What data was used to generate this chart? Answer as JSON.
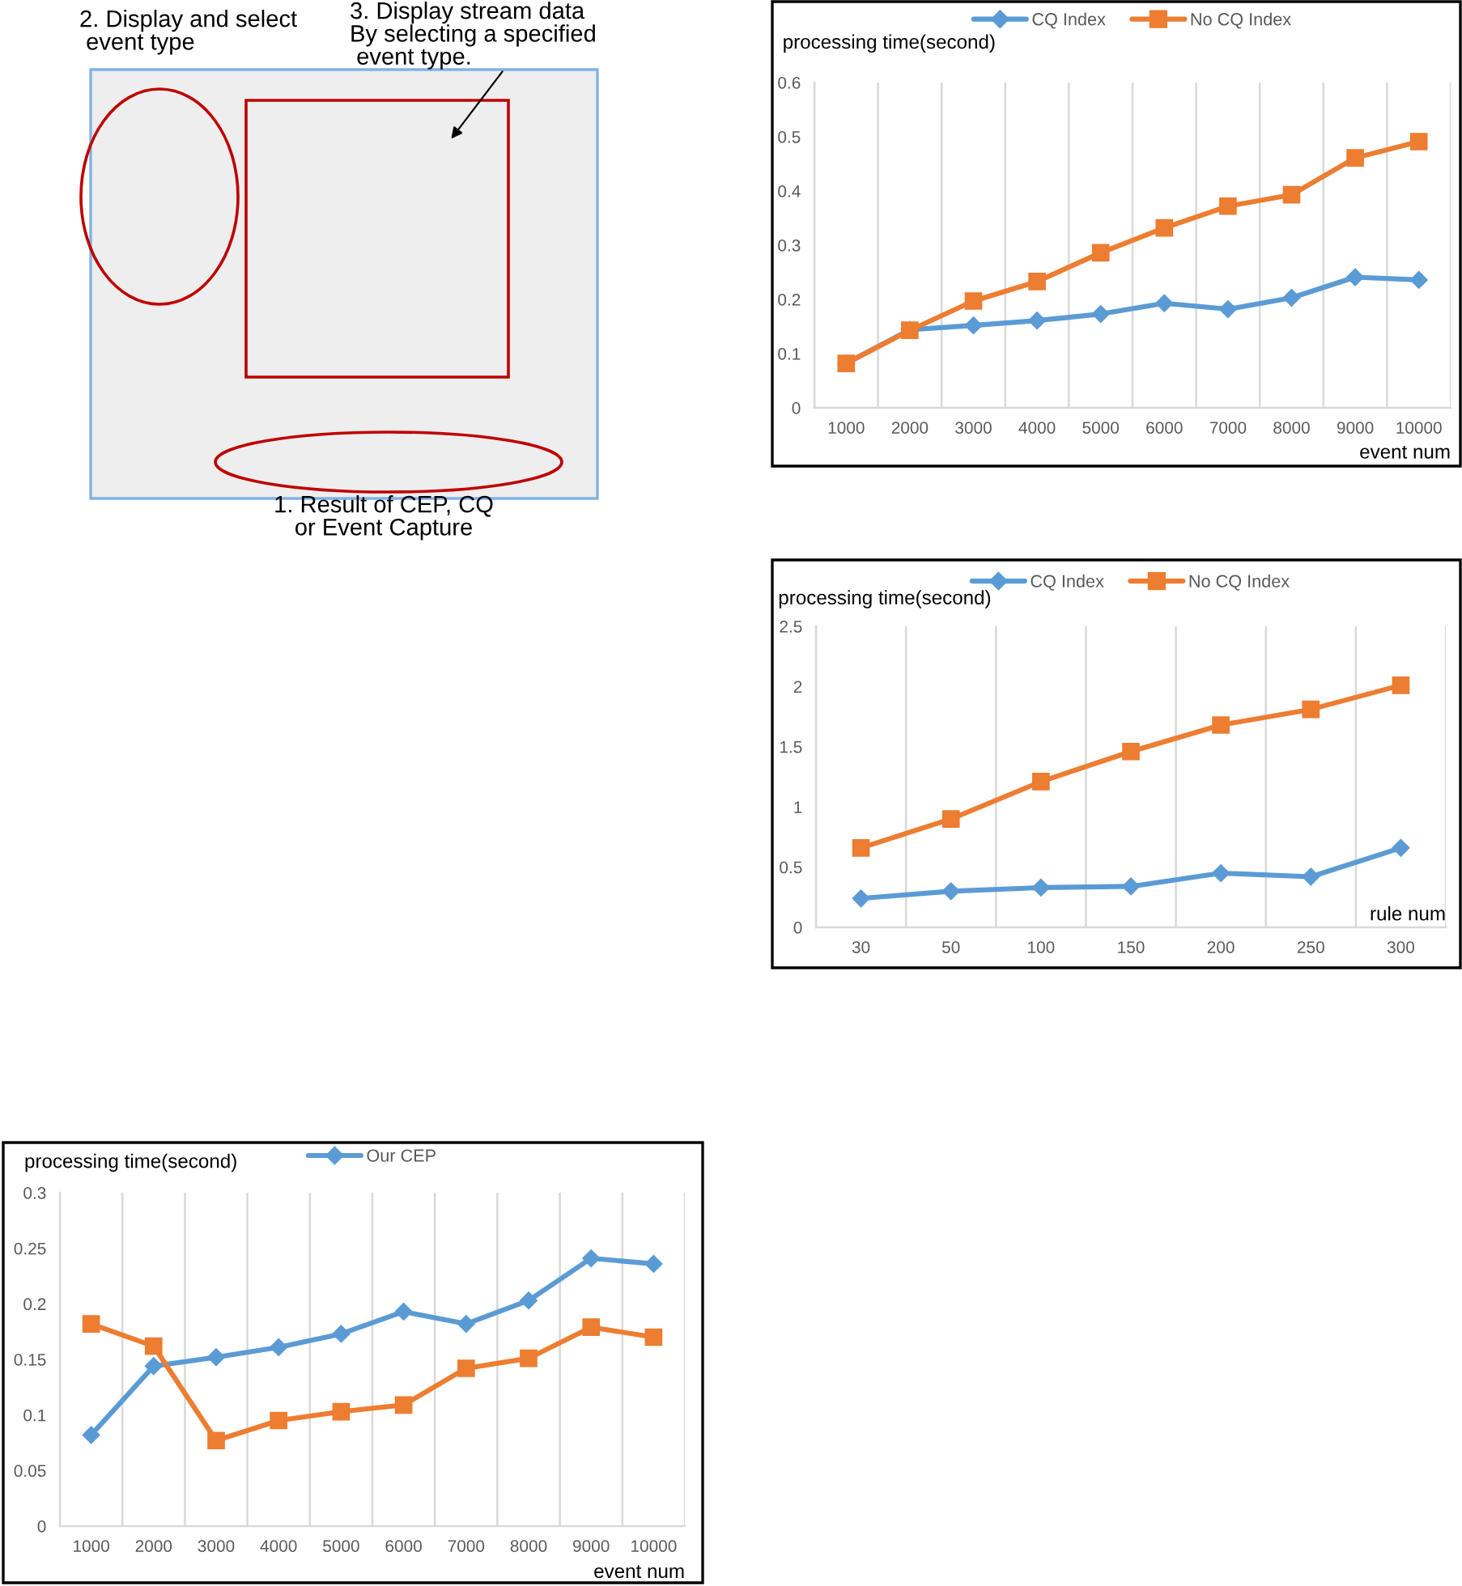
{
  "chart_data": [
    {
      "type": "other",
      "annotations": [
        "2. Display and select\n event type",
        "3. Display stream data\nBy selecting a specified\n event type.",
        "1. Result of CEP, CQ\nor Event Capture"
      ]
    },
    {
      "type": "line",
      "ylabel": "processing time(second)",
      "xlabel": "event num",
      "categories": [
        "1000",
        "2000",
        "3000",
        "4000",
        "5000",
        "6000",
        "7000",
        "8000",
        "9000",
        "10000"
      ],
      "series": [
        {
          "name": "CQ Index",
          "color": "#5b9bd5",
          "marker": "diamond",
          "values": [
            0.082,
            0.144,
            0.152,
            0.161,
            0.173,
            0.193,
            0.182,
            0.203,
            0.241,
            0.236
          ]
        },
        {
          "name": "No CQ Index",
          "color": "#ed7d31",
          "marker": "square",
          "values": [
            0.082,
            0.143,
            0.197,
            0.233,
            0.286,
            0.332,
            0.372,
            0.393,
            0.461,
            0.491
          ]
        }
      ],
      "ylim": [
        0,
        0.6
      ],
      "yticks": [
        0,
        0.1,
        0.2,
        0.3,
        0.4,
        0.5,
        0.6
      ],
      "grid": "x",
      "legend": "top",
      "line_style": "solid"
    },
    {
      "type": "line",
      "ylabel": "processing time(second)",
      "xlabel": "rule num",
      "categories": [
        "30",
        "50",
        "100",
        "150",
        "200",
        "250",
        "300"
      ],
      "series": [
        {
          "name": "CQ Index",
          "color": "#5b9bd5",
          "marker": "diamond",
          "values": [
            0.24,
            0.3,
            0.33,
            0.34,
            0.45,
            0.42,
            0.66
          ]
        },
        {
          "name": "No CQ Index",
          "color": "#ed7d31",
          "marker": "square",
          "values": [
            0.66,
            0.9,
            1.21,
            1.46,
            1.68,
            1.81,
            2.01
          ]
        }
      ],
      "ylim": [
        0,
        2.5
      ],
      "yticks": [
        0,
        0.5,
        1,
        1.5,
        2,
        2.5
      ],
      "grid": "x",
      "legend": "top",
      "line_style": "solid"
    },
    {
      "type": "line",
      "ylabel": "processing time(second)",
      "xlabel": "event num",
      "categories": [
        "1000",
        "2000",
        "3000",
        "4000",
        "5000",
        "6000",
        "7000",
        "8000",
        "9000",
        "10000"
      ],
      "series": [
        {
          "name": "Our CEP",
          "color": "#5b9bd5",
          "marker": "diamond",
          "values": [
            0.082,
            0.144,
            0.152,
            0.161,
            0.173,
            0.193,
            0.182,
            0.203,
            0.241,
            0.236
          ]
        },
        {
          "color": "#ed7d31",
          "marker": "square",
          "values": [
            0.182,
            0.162,
            0.077,
            0.095,
            0.103,
            0.109,
            0.142,
            0.151,
            0.179,
            0.17
          ]
        }
      ],
      "ylim": [
        0,
        0.3
      ],
      "yticks": [
        0,
        0.05,
        0.1,
        0.15,
        0.2,
        0.25,
        0.3
      ],
      "grid": "x",
      "legend": "top",
      "line_style": "solid"
    }
  ]
}
